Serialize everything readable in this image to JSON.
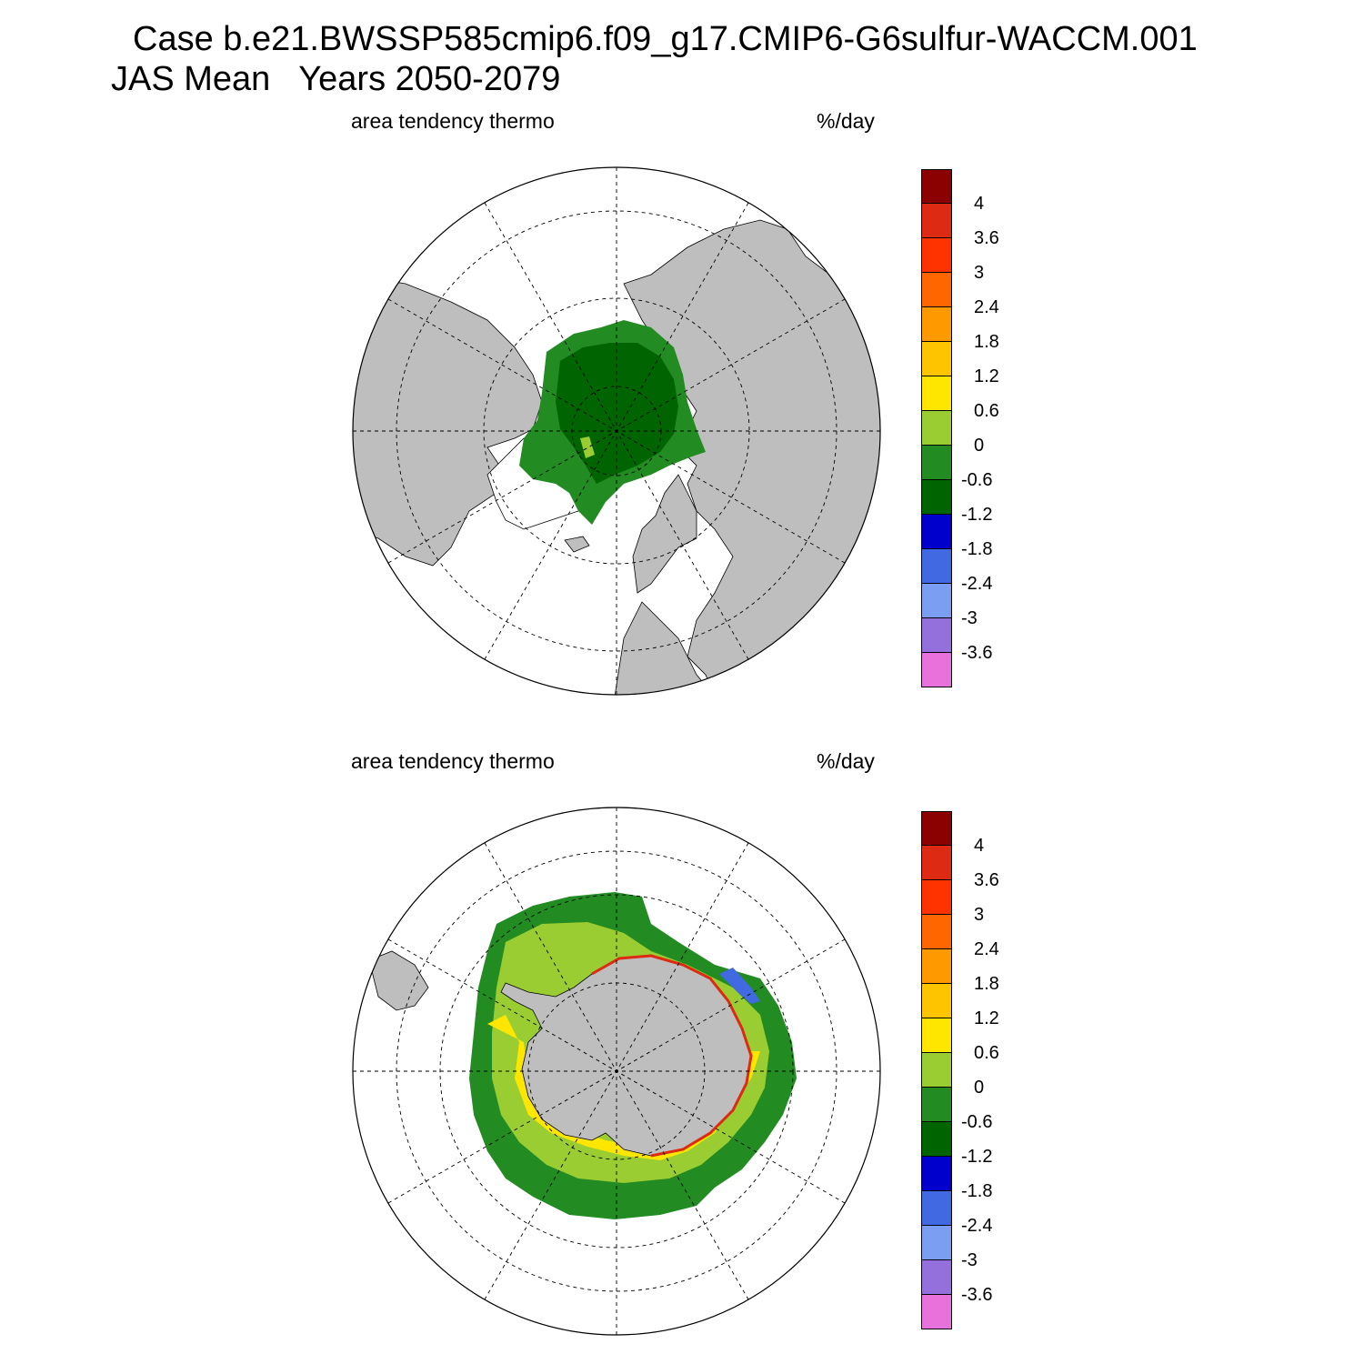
{
  "header": {
    "title_line1": "Case b.e21.BWSSP585cmip6.f09_g17.CMIP6-G6sulfur-WACCM.001",
    "title_line2": "JAS Mean   Years 2050-2079"
  },
  "panels": [
    {
      "id": "north",
      "variable_label": "area tendency thermo",
      "units_label": "%/day",
      "hemisphere": "northern polar stereographic"
    },
    {
      "id": "south",
      "variable_label": "area tendency thermo",
      "units_label": "%/day",
      "hemisphere": "southern polar stereographic"
    }
  ],
  "colors": {
    "land": "#bebebe",
    "ocean": "#ffffff",
    "grid": "#000000"
  },
  "colorbar": {
    "segments": [
      "#e871db",
      "#9370db",
      "#7b9ef3",
      "#4169e1",
      "#0000cd",
      "#006400",
      "#228b22",
      "#9acd32",
      "#ffe600",
      "#ffc400",
      "#ff9900",
      "#ff6600",
      "#ff3300",
      "#dd2a12",
      "#8b0000"
    ],
    "labels": [
      "4",
      "3.6",
      "3",
      "2.4",
      "1.8",
      "1.2",
      "0.6",
      "0",
      "-0.6",
      "-1.2",
      "-1.8",
      "-2.4",
      "-3",
      "-3.6"
    ]
  }
}
